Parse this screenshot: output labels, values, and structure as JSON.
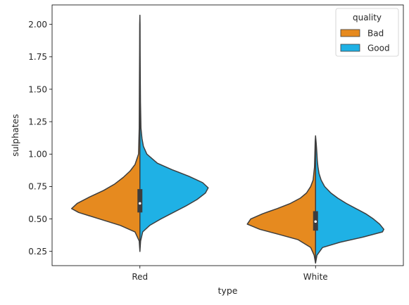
{
  "chart_data": {
    "type": "violin",
    "title": "",
    "xlabel": "type",
    "ylabel": "sulphates",
    "categories": [
      "Red",
      "White"
    ],
    "ylim": [
      0.14,
      2.15
    ],
    "yticks": [
      0.25,
      0.5,
      0.75,
      1.0,
      1.25,
      1.5,
      1.75,
      2.0
    ],
    "ytick_labels": [
      "0.25",
      "0.50",
      "0.75",
      "1.00",
      "1.25",
      "1.50",
      "1.75",
      "2.00"
    ],
    "split": true,
    "legend": {
      "title": "quality",
      "placement": "top-right",
      "entries": [
        "Bad",
        "Good"
      ]
    },
    "series": [
      {
        "name": "Bad",
        "color": "#e68a1f",
        "side": "left"
      },
      {
        "name": "Good",
        "color": "#1fb1e5",
        "side": "right"
      }
    ],
    "violins": [
      {
        "category": "Red",
        "box": {
          "q1": 0.55,
          "median": 0.62,
          "q3": 0.73,
          "whisker_low": 0.33,
          "whisker_high": 0.98
        },
        "bad": {
          "min": 0.25,
          "max": 2.07,
          "density": [
            [
              0.25,
              0.0
            ],
            [
              0.33,
              0.01
            ],
            [
              0.4,
              0.07
            ],
            [
              0.45,
              0.28
            ],
            [
              0.5,
              0.58
            ],
            [
              0.55,
              0.88
            ],
            [
              0.58,
              0.98
            ],
            [
              0.62,
              0.9
            ],
            [
              0.67,
              0.72
            ],
            [
              0.72,
              0.52
            ],
            [
              0.77,
              0.36
            ],
            [
              0.82,
              0.24
            ],
            [
              0.87,
              0.14
            ],
            [
              0.92,
              0.07
            ],
            [
              1.0,
              0.02
            ],
            [
              1.1,
              0.015
            ],
            [
              1.2,
              0.01
            ],
            [
              1.4,
              0.008
            ],
            [
              1.6,
              0.006
            ],
            [
              1.8,
              0.004
            ],
            [
              2.0,
              0.003
            ],
            [
              2.07,
              0.0
            ]
          ]
        },
        "good": {
          "min": 0.25,
          "max": 2.07,
          "density": [
            [
              0.25,
              0.0
            ],
            [
              0.33,
              0.01
            ],
            [
              0.4,
              0.04
            ],
            [
              0.45,
              0.14
            ],
            [
              0.5,
              0.3
            ],
            [
              0.55,
              0.48
            ],
            [
              0.6,
              0.66
            ],
            [
              0.65,
              0.82
            ],
            [
              0.7,
              0.94
            ],
            [
              0.74,
              0.98
            ],
            [
              0.78,
              0.9
            ],
            [
              0.83,
              0.7
            ],
            [
              0.88,
              0.46
            ],
            [
              0.93,
              0.25
            ],
            [
              1.0,
              0.1
            ],
            [
              1.06,
              0.05
            ],
            [
              1.12,
              0.03
            ],
            [
              1.2,
              0.015
            ],
            [
              1.4,
              0.008
            ],
            [
              1.6,
              0.005
            ],
            [
              1.8,
              0.003
            ],
            [
              2.0,
              0.002
            ],
            [
              2.07,
              0.0
            ]
          ]
        }
      },
      {
        "category": "White",
        "box": {
          "q1": 0.41,
          "median": 0.48,
          "q3": 0.56,
          "whisker_low": 0.22,
          "whisker_high": 0.78
        },
        "bad": {
          "min": 0.16,
          "max": 1.14,
          "density": [
            [
              0.16,
              0.0
            ],
            [
              0.22,
              0.02
            ],
            [
              0.28,
              0.07
            ],
            [
              0.34,
              0.25
            ],
            [
              0.38,
              0.52
            ],
            [
              0.42,
              0.8
            ],
            [
              0.46,
              0.98
            ],
            [
              0.5,
              0.93
            ],
            [
              0.54,
              0.76
            ],
            [
              0.58,
              0.55
            ],
            [
              0.62,
              0.36
            ],
            [
              0.66,
              0.22
            ],
            [
              0.7,
              0.13
            ],
            [
              0.75,
              0.07
            ],
            [
              0.8,
              0.035
            ],
            [
              0.9,
              0.015
            ],
            [
              1.0,
              0.01
            ],
            [
              1.1,
              0.005
            ],
            [
              1.14,
              0.0
            ]
          ]
        },
        "good": {
          "min": 0.16,
          "max": 1.14,
          "density": [
            [
              0.16,
              0.0
            ],
            [
              0.22,
              0.02
            ],
            [
              0.28,
              0.1
            ],
            [
              0.32,
              0.35
            ],
            [
              0.36,
              0.68
            ],
            [
              0.4,
              0.96
            ],
            [
              0.42,
              0.98
            ],
            [
              0.46,
              0.92
            ],
            [
              0.5,
              0.83
            ],
            [
              0.54,
              0.72
            ],
            [
              0.58,
              0.58
            ],
            [
              0.62,
              0.44
            ],
            [
              0.66,
              0.32
            ],
            [
              0.7,
              0.22
            ],
            [
              0.75,
              0.13
            ],
            [
              0.8,
              0.08
            ],
            [
              0.85,
              0.05
            ],
            [
              0.9,
              0.035
            ],
            [
              0.95,
              0.025
            ],
            [
              1.0,
              0.02
            ],
            [
              1.08,
              0.01
            ],
            [
              1.14,
              0.0
            ]
          ]
        }
      }
    ]
  }
}
